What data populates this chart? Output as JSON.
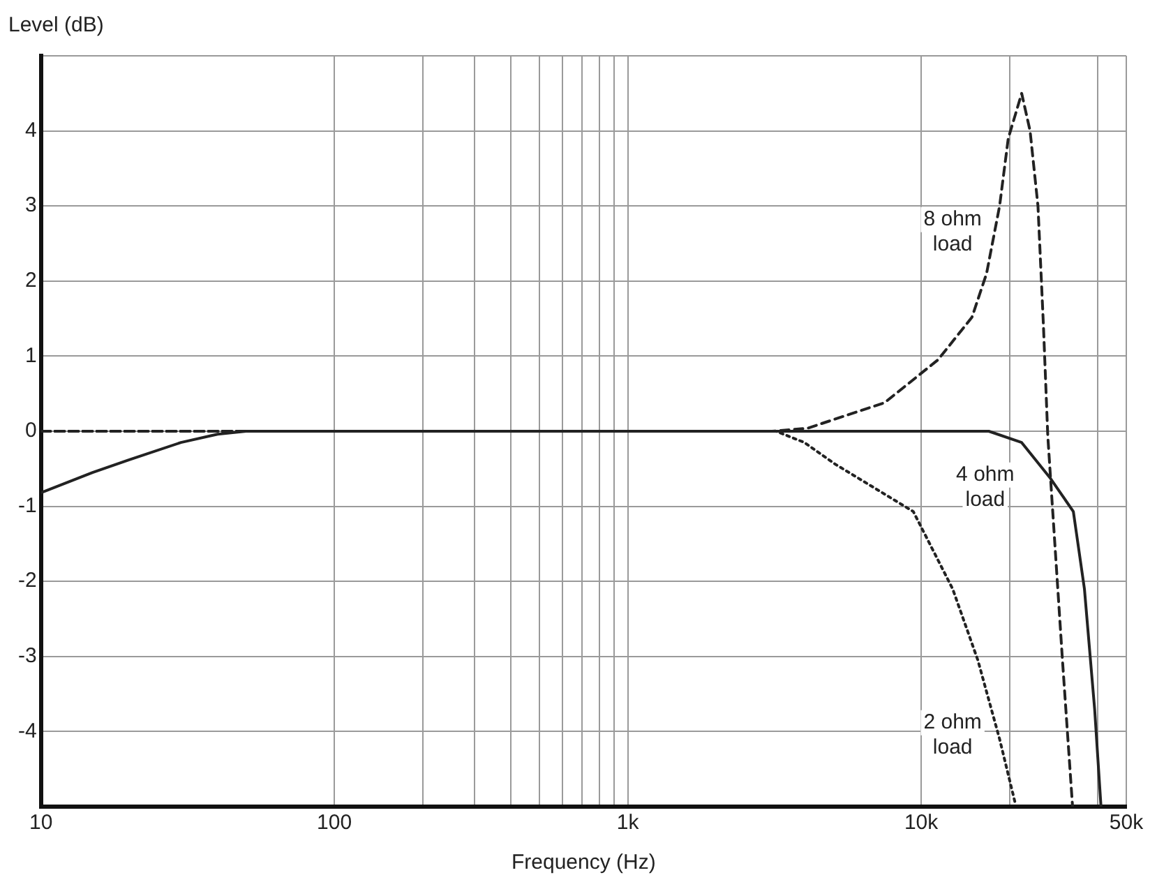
{
  "chart_data": {
    "type": "line",
    "ylabel": "Level (dB)",
    "xlabel": "Frequency (Hz)",
    "log": "x",
    "grid": true,
    "legend": false,
    "marker": "none",
    "xlim": [
      10,
      50000
    ],
    "ylim": [
      -5,
      5
    ],
    "xticks": [
      10,
      100,
      {
        "value": 200,
        "label": null
      },
      {
        "value": 300,
        "label": null
      },
      {
        "value": 400,
        "label": null
      },
      {
        "value": 500,
        "label": null
      },
      {
        "value": 600,
        "label": null
      },
      {
        "value": 700,
        "label": null
      },
      {
        "value": 800,
        "label": null
      },
      {
        "value": 900,
        "label": null
      },
      {
        "value": 1000,
        "label": "1k"
      },
      {
        "value": 10000,
        "label": "10k"
      },
      {
        "value": 20000,
        "label": null
      },
      {
        "value": 40000,
        "label": null
      },
      {
        "value": 50000,
        "label": "50k"
      }
    ],
    "yticks": [
      {
        "value": -5,
        "label": null
      },
      -4,
      -3,
      -2,
      -1,
      0,
      1,
      2,
      3,
      4,
      {
        "value": 5,
        "label": null
      }
    ],
    "series": [
      {
        "name": "4 ohm load",
        "color": "#222222",
        "line_style": "solid",
        "x": [
          10,
          15,
          20,
          30,
          40,
          50,
          100,
          1000,
          10000,
          17000,
          22000,
          27600,
          33000,
          36000,
          39000,
          41000
        ],
        "values": [
          -0.82,
          -0.55,
          -0.38,
          -0.15,
          -0.04,
          0,
          0,
          0,
          0,
          0,
          -0.15,
          -0.63,
          -1.07,
          -2.1,
          -3.7,
          -5
        ]
      },
      {
        "name": "8 ohm load",
        "color": "#222222",
        "line_style": "dashed",
        "x": [
          10,
          100,
          1000,
          3100,
          4100,
          7500,
          11400,
          14900,
          16700,
          18500,
          19800,
          22000,
          23500,
          25000,
          26100,
          27000,
          30300,
          32800
        ],
        "values": [
          0,
          0,
          0,
          0,
          0.04,
          0.38,
          0.95,
          1.52,
          2.1,
          3,
          3.9,
          4.5,
          4,
          3,
          1.4,
          -0.06,
          -3.05,
          -5
        ]
      },
      {
        "name": "2 ohm load",
        "color": "#222222",
        "line_style": "dotted",
        "x": [
          10,
          100,
          1000,
          3200,
          4000,
          5100,
          9400,
          12800,
          15600,
          18500,
          20900
        ],
        "values": [
          0,
          0,
          0,
          0,
          -0.15,
          -0.44,
          -1.07,
          -2.1,
          -3.05,
          -4.1,
          -4.95
        ]
      }
    ]
  }
}
